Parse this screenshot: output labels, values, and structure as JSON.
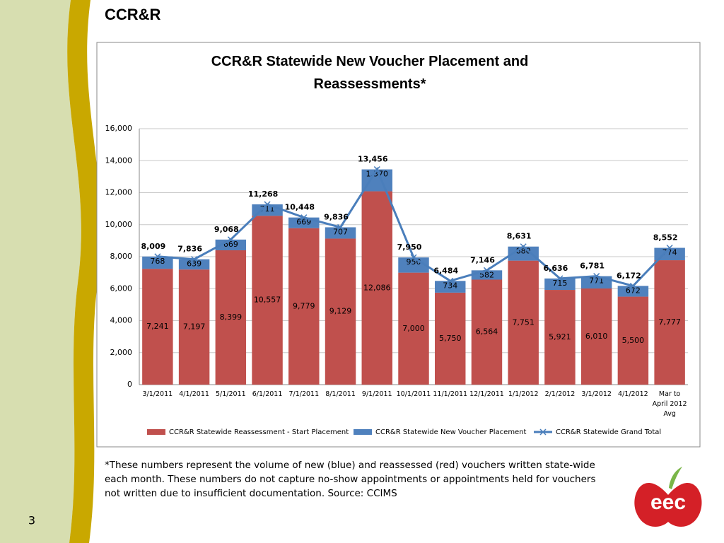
{
  "slide_title": "CCR&R",
  "chart_data": {
    "type": "stacked-bar-line",
    "title": "CCR&R Statewide New Voucher Placement and Reassessments*",
    "categories": [
      "3/1/2011",
      "4/1/2011",
      "5/1/2011",
      "6/1/2011",
      "7/1/2011",
      "8/1/2011",
      "9/1/2011",
      "10/1/2011",
      "11/1/2011",
      "12/1/2011",
      "1/1/2012",
      "2/1/2012",
      "3/1/2012",
      "4/1/2012",
      "Mar to April 2012 Avg"
    ],
    "ylim": [
      0,
      16000
    ],
    "yticks": [
      0,
      {
        "value": 2000,
        "label": "2,000"
      },
      {
        "value": 4000,
        "label": "4,000"
      },
      {
        "value": 6000,
        "label": "6,000"
      },
      {
        "value": 8000,
        "label": "8,000"
      },
      {
        "value": 10000,
        "label": "10,000"
      },
      {
        "value": 12000,
        "label": "12,000"
      },
      {
        "value": 14000,
        "label": "14,000"
      },
      {
        "value": 16000,
        "label": "16,000"
      }
    ],
    "grid": true,
    "legend": "bottom",
    "series": [
      {
        "name": "CCR&R Statewide Reassessment - Start Placement",
        "kind": "bar",
        "color": "#c0504d",
        "values": [
          7241,
          7197,
          8399,
          10557,
          9779,
          9129,
          12086,
          7000,
          5750,
          6564,
          7751,
          5921,
          6010,
          5500,
          7777
        ],
        "value_labels": [
          "7,241",
          "7,197",
          "8,399",
          "10,557",
          "9,779",
          "9,129",
          "12,086",
          "7,000",
          "5,750",
          "6,564",
          "7,751",
          "5,921",
          "6,010",
          "5,500",
          "7,777"
        ]
      },
      {
        "name": "CCR&R Statewide New Voucher Placement",
        "kind": "bar",
        "color": "#4f81bd",
        "values": [
          768,
          639,
          669,
          711,
          669,
          707,
          1370,
          950,
          734,
          582,
          880,
          715,
          771,
          672,
          774
        ],
        "value_labels": [
          "768",
          "639",
          "669",
          "711",
          "669",
          "707",
          "1,370",
          "950",
          "734",
          "582",
          "880",
          "715",
          "771",
          "672",
          "774"
        ]
      },
      {
        "name": "CCR&R Statewide Grand Total",
        "kind": "line",
        "color": "#4a7ebb",
        "values": [
          8009,
          7836,
          9068,
          11268,
          10448,
          9836,
          13456,
          7950,
          6484,
          7146,
          8631,
          6636,
          6781,
          6172,
          8552
        ],
        "value_labels": [
          "8,009",
          "7,836",
          "9,068",
          "11,268",
          "10,448",
          "9,836",
          "13,456",
          "7,950",
          "6,484",
          "7,146",
          "8,631",
          "6,636",
          "6,781",
          "6,172",
          "8,552"
        ]
      }
    ]
  },
  "footnote": "*These numbers represent the volume of new (blue) and reassessed (red) vouchers written state-wide each month. These numbers do not capture no-show appointments or appointments held for vouchers not written due to insufficient documentation.  Source: CCIMS",
  "page_number": "3",
  "logo": "eec"
}
